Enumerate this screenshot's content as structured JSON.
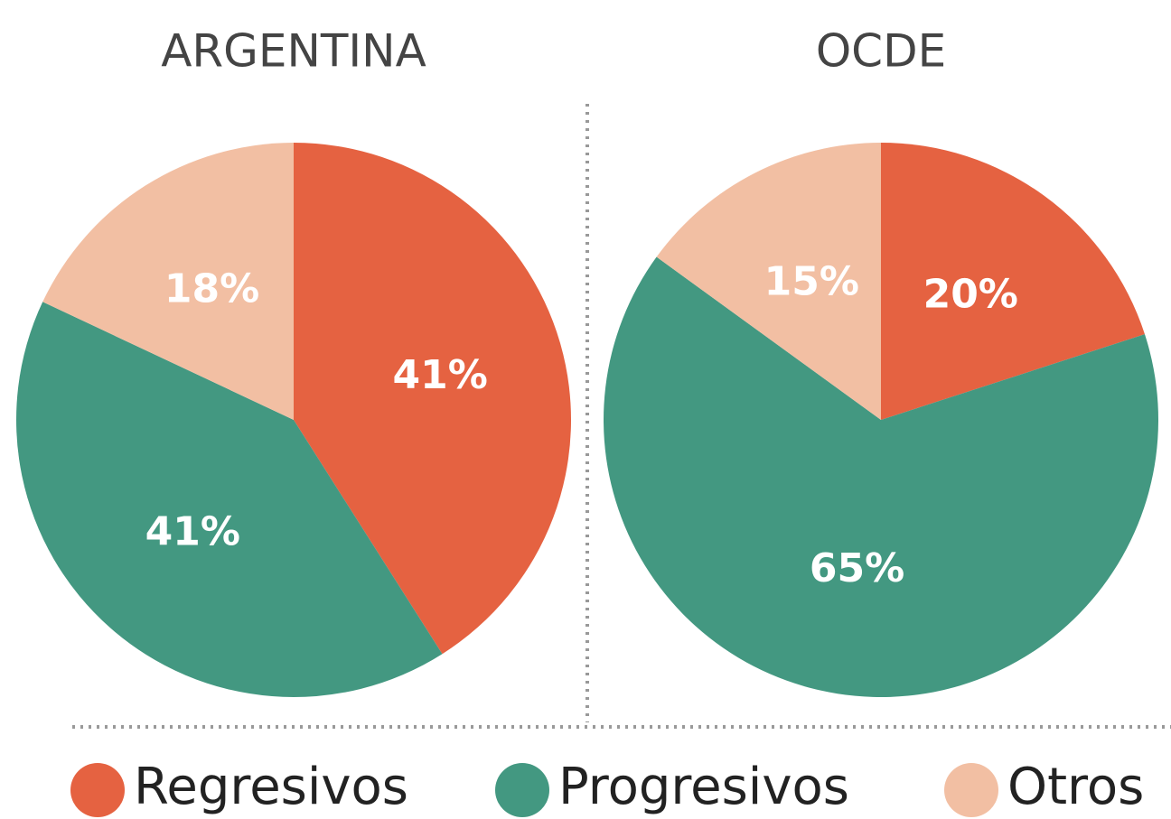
{
  "chart_data": [
    {
      "type": "pie",
      "title": "ARGENTINA",
      "values": [
        41,
        41,
        18
      ],
      "value_labels": [
        "41%",
        "41%",
        "18%"
      ]
    },
    {
      "type": "pie",
      "title": "OCDE",
      "values": [
        20,
        65,
        15
      ],
      "value_labels": [
        "20%",
        "65%",
        "15%"
      ]
    }
  ],
  "legend": {
    "labels": [
      "Regresivos",
      "Progresivos",
      "Otros"
    ],
    "colors": [
      "#e56241",
      "#439881",
      "#f2bfa3"
    ]
  }
}
